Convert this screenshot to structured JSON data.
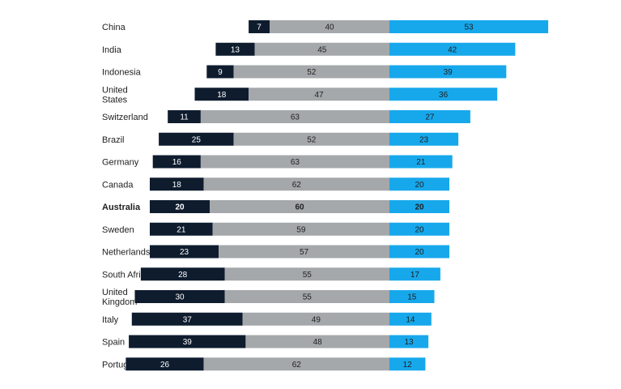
{
  "chart_data": {
    "type": "bar",
    "orientation": "horizontal",
    "stacked": true,
    "categories": [
      "China",
      "India",
      "Indonesia",
      "United States",
      "Switzerland",
      "Brazil",
      "Germany",
      "Canada",
      "Australia",
      "Sweden",
      "Netherlands",
      "South Africa",
      "United Kingdom",
      "Italy",
      "Spain",
      "Portugal"
    ],
    "highlight": "Australia",
    "series": [
      {
        "values": [
          7,
          13,
          9,
          18,
          11,
          25,
          16,
          18,
          20,
          21,
          23,
          28,
          30,
          37,
          39,
          26
        ],
        "color": "#0e1c2e",
        "label_color": "#ffffff"
      },
      {
        "values": [
          40,
          45,
          52,
          47,
          63,
          52,
          63,
          62,
          60,
          59,
          57,
          55,
          55,
          49,
          48,
          62
        ],
        "color": "#a5a8ab",
        "label_color": "#1f1f1f"
      },
      {
        "values": [
          53,
          42,
          39,
          36,
          27,
          23,
          21,
          20,
          20,
          20,
          20,
          17,
          15,
          14,
          13,
          12
        ],
        "color": "#17a8ec",
        "label_color": "#1f1f1f"
      }
    ],
    "grid": false,
    "legend": "none"
  }
}
